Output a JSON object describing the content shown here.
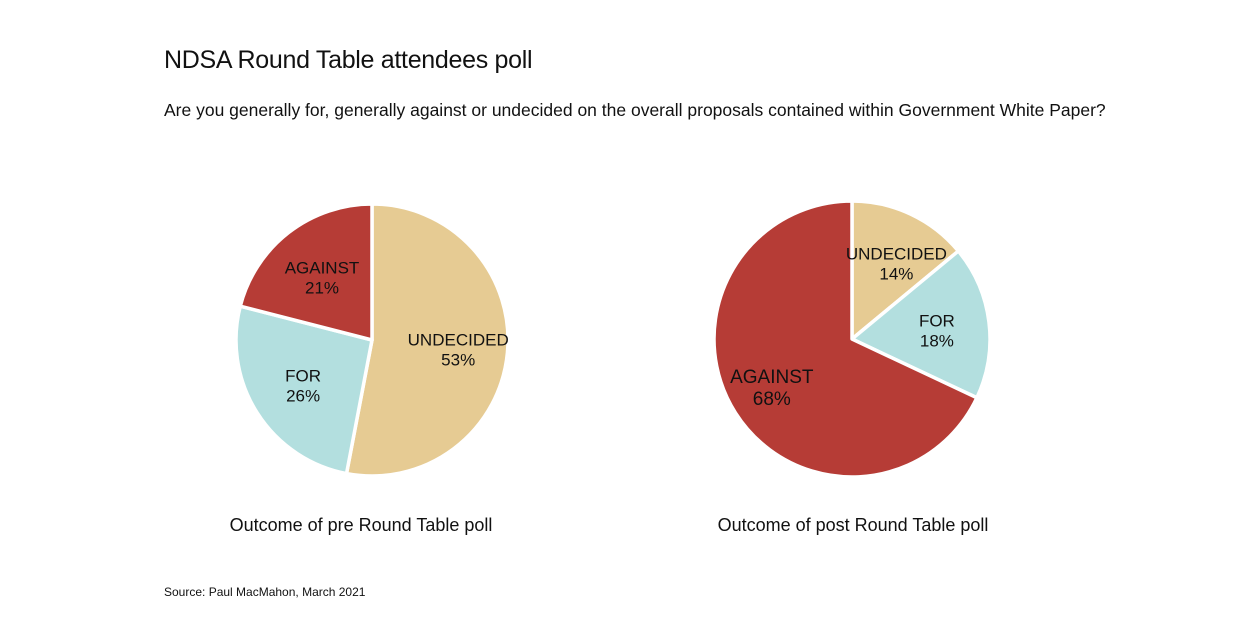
{
  "header": {
    "title": "NDSA Round Table attendees poll",
    "subtitle": "Are you generally for, generally against or undecided on the overall proposals contained within Government White Paper?"
  },
  "footer": {
    "source": "Source: Paul MacMahon, March 2021"
  },
  "colors": {
    "undecided": "#E6CB93",
    "for": "#B3DFDF",
    "against": "#B63C36",
    "separator": "#ffffff"
  },
  "chart_data": [
    {
      "type": "pie",
      "title": "Outcome of pre Round Table poll",
      "slices": [
        {
          "label": "UNDECIDED",
          "value": 53,
          "display": "53%",
          "color": "#E6CB93"
        },
        {
          "label": "FOR",
          "value": 26,
          "display": "26%",
          "color": "#B3DFDF"
        },
        {
          "label": "AGAINST",
          "value": 21,
          "display": "21%",
          "color": "#B63C36"
        }
      ],
      "start": "12 o'clock",
      "direction": "clockwise"
    },
    {
      "type": "pie",
      "title": "Outcome of post Round Table poll",
      "slices": [
        {
          "label": "UNDECIDED",
          "value": 14,
          "display": "14%",
          "color": "#E6CB93"
        },
        {
          "label": "FOR",
          "value": 18,
          "display": "18%",
          "color": "#B3DFDF"
        },
        {
          "label": "AGAINST",
          "value": 68,
          "display": "68%",
          "color": "#B63C36"
        }
      ],
      "start": "12 o'clock",
      "direction": "clockwise"
    }
  ]
}
